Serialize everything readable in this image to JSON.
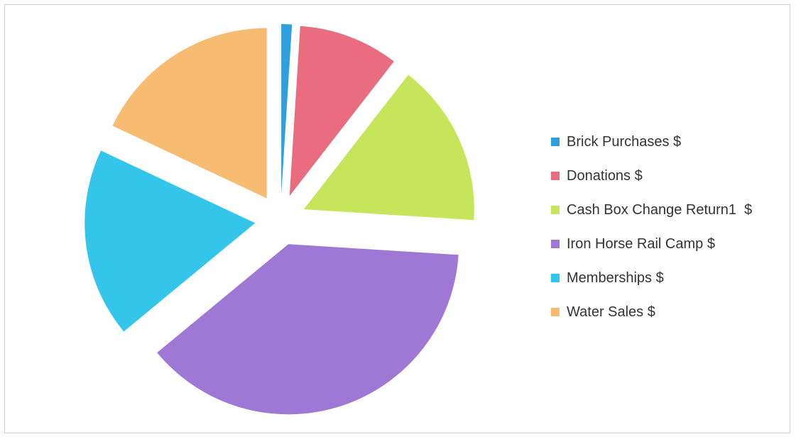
{
  "chart_data": {
    "type": "pie",
    "title": "",
    "exploded": true,
    "legend_placement": "right",
    "categories": [
      "Brick Purchases $",
      "Donations $",
      "Cash Box Change Return1  $",
      "Iron Horse Rail Camp $",
      "Memberships $",
      "Water Sales $"
    ],
    "values_percent": [
      1.0,
      9.5,
      15.5,
      38.0,
      18.0,
      18.0
    ],
    "colors": [
      "#2f9fe0",
      "#e96c7f",
      "#c7e55a",
      "#9f78d6",
      "#33c6ea",
      "#f8bb72"
    ]
  }
}
